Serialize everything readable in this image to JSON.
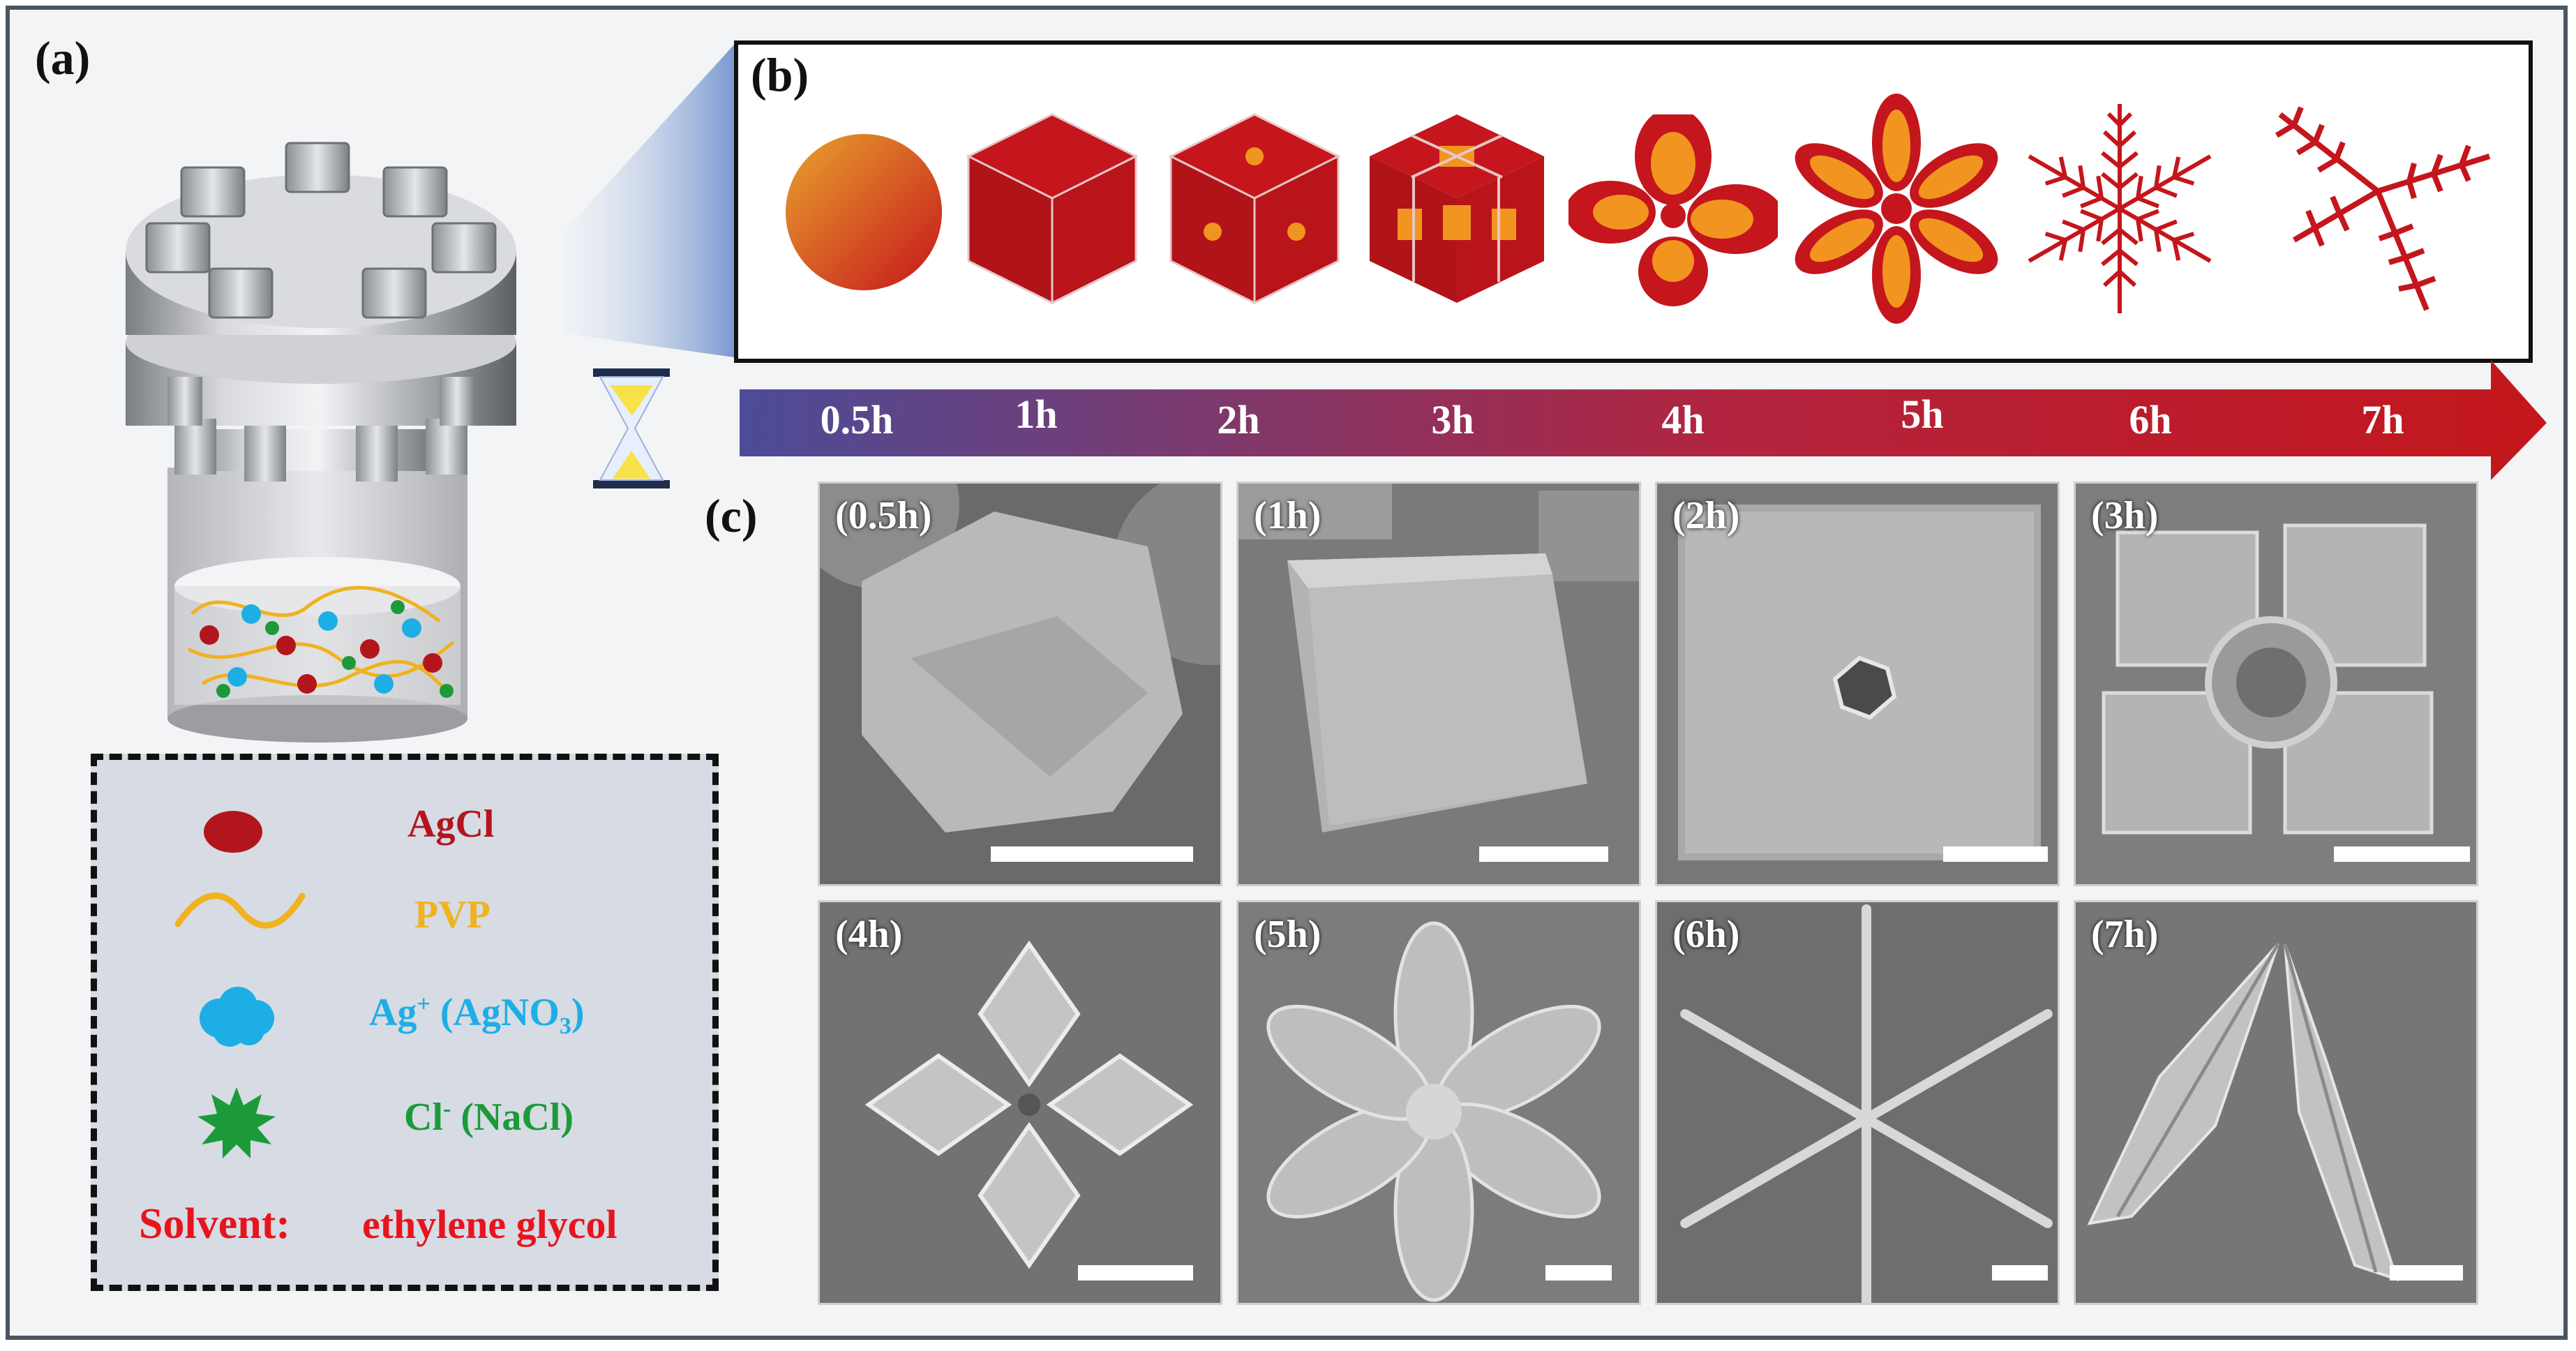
{
  "panels": {
    "a": "(a)",
    "b": "(b)",
    "c": "(c)"
  },
  "legend": {
    "items": [
      {
        "label": "AgCl",
        "color": "#b3151d",
        "icon": "red-ellipse-icon"
      },
      {
        "label": "PVP",
        "color": "#f0b21e",
        "icon": "wave-line-icon"
      },
      {
        "label": "Ag",
        "sup": "+",
        "rest": " (AgNO",
        "sub": "3",
        "end": ")",
        "color": "#1eaee6",
        "icon": "cloud-icon"
      },
      {
        "label": "Cl",
        "sup": "-",
        "rest": " (NaCl)",
        "color": "#1c9a3a",
        "icon": "star-icon"
      }
    ],
    "solvent_key": "Solvent:",
    "solvent_value": "ethylene glycol"
  },
  "timeline": {
    "labels": [
      "0.5h",
      "1h",
      "2h",
      "3h",
      "4h",
      "5h",
      "6h",
      "7h"
    ],
    "gradient": [
      "#4c4c98",
      "#b3243e",
      "#c4161c"
    ]
  },
  "sem": {
    "labels": [
      "(0.5h)",
      "(1h)",
      "(2h)",
      "(3h)",
      "(4h)",
      "(5h)",
      "(6h)",
      "(7h)"
    ]
  },
  "colors": {
    "crystal_red": "#c4161c",
    "crystal_orange": "#f29420"
  }
}
